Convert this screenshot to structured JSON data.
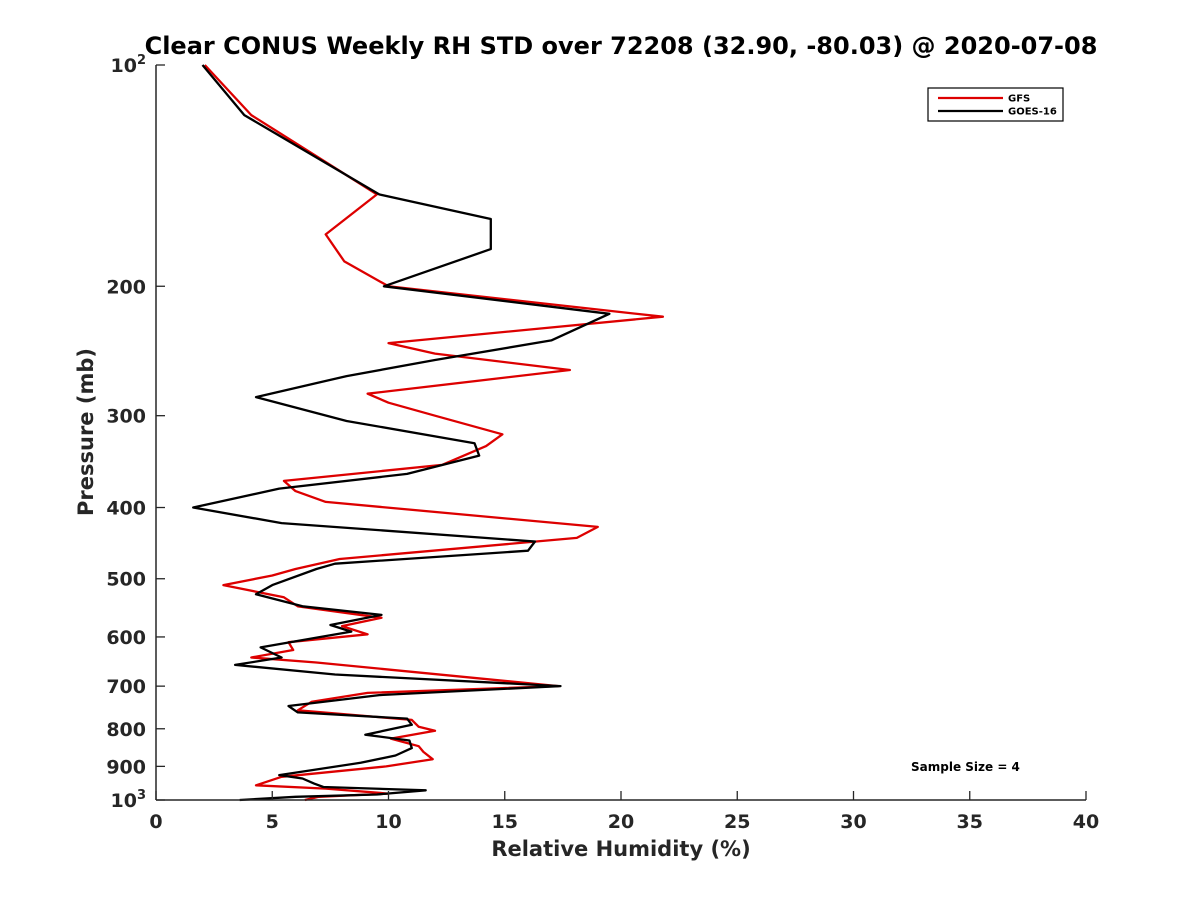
{
  "chart_data": {
    "type": "line",
    "title": "Clear CONUS Weekly RH STD over 72208 (32.90, -80.03) @ 2020-07-08",
    "xlabel": "Relative Humidity (%)",
    "ylabel": "Pressure (mb)",
    "xlim": [
      0,
      40
    ],
    "ylim": [
      100,
      1000
    ],
    "y_scale": "log",
    "y_reversed": true,
    "x_ticks": [
      0,
      5,
      10,
      15,
      20,
      25,
      30,
      35,
      40
    ],
    "x_tick_labels": [
      "0",
      "5",
      "10",
      "15",
      "20",
      "25",
      "30",
      "35",
      "40"
    ],
    "y_ticks": [
      {
        "value": 100,
        "base": "10",
        "exp": "2"
      },
      {
        "value": 200,
        "label": "200"
      },
      {
        "value": 300,
        "label": "300"
      },
      {
        "value": 400,
        "label": "400"
      },
      {
        "value": 500,
        "label": "500"
      },
      {
        "value": 600,
        "label": "600"
      },
      {
        "value": 700,
        "label": "700"
      },
      {
        "value": 800,
        "label": "800"
      },
      {
        "value": 900,
        "label": "900"
      },
      {
        "value": 1000,
        "base": "10",
        "exp": "3"
      }
    ],
    "legend": {
      "position": "top-right",
      "entries": [
        "GFS",
        "GOES-16"
      ]
    },
    "annotation": "Sample Size = 4",
    "series": [
      {
        "name": "GFS",
        "color": "#dd0000",
        "points": [
          [
            2.1,
            100
          ],
          [
            4.1,
            117
          ],
          [
            9.5,
            150
          ],
          [
            7.3,
            170
          ],
          [
            8.1,
            185
          ],
          [
            10.0,
            200
          ],
          [
            21.8,
            220
          ],
          [
            10.0,
            239
          ],
          [
            12.0,
            247
          ],
          [
            17.8,
            260
          ],
          [
            9.1,
            280
          ],
          [
            10.0,
            288
          ],
          [
            12.0,
            300
          ],
          [
            14.9,
            318
          ],
          [
            14.2,
            330
          ],
          [
            12.3,
            350
          ],
          [
            5.5,
            368
          ],
          [
            6.0,
            380
          ],
          [
            7.3,
            393
          ],
          [
            19.0,
            425
          ],
          [
            18.1,
            440
          ],
          [
            7.9,
            470
          ],
          [
            6.0,
            485
          ],
          [
            5.0,
            495
          ],
          [
            2.9,
            510
          ],
          [
            5.5,
            530
          ],
          [
            6.1,
            545
          ],
          [
            9.7,
            565
          ],
          [
            8.0,
            580
          ],
          [
            9.1,
            595
          ],
          [
            5.7,
            610
          ],
          [
            5.9,
            625
          ],
          [
            4.1,
            640
          ],
          [
            6.9,
            650
          ],
          [
            17.3,
            700
          ],
          [
            9.1,
            715
          ],
          [
            6.7,
            735
          ],
          [
            6.1,
            755
          ],
          [
            11.0,
            778
          ],
          [
            11.3,
            795
          ],
          [
            12.0,
            805
          ],
          [
            10.1,
            825
          ],
          [
            11.3,
            845
          ],
          [
            11.5,
            860
          ],
          [
            11.9,
            880
          ],
          [
            9.9,
            900
          ],
          [
            5.4,
            930
          ],
          [
            4.3,
            955
          ],
          [
            7.3,
            965
          ],
          [
            10.0,
            980
          ],
          [
            7.0,
            990
          ],
          [
            6.4,
            1000
          ]
        ]
      },
      {
        "name": "GOES-16",
        "color": "#000000",
        "points": [
          [
            2.0,
            100
          ],
          [
            3.8,
            117
          ],
          [
            9.6,
            150
          ],
          [
            14.4,
            162
          ],
          [
            14.4,
            178
          ],
          [
            9.8,
            200
          ],
          [
            19.5,
            218
          ],
          [
            17.0,
            237
          ],
          [
            12.0,
            252
          ],
          [
            8.2,
            265
          ],
          [
            4.3,
            283
          ],
          [
            8.2,
            305
          ],
          [
            13.7,
            327
          ],
          [
            13.9,
            340
          ],
          [
            10.8,
            360
          ],
          [
            5.3,
            377
          ],
          [
            1.6,
            400
          ],
          [
            5.4,
            420
          ],
          [
            16.3,
            445
          ],
          [
            16.0,
            458
          ],
          [
            7.7,
            477
          ],
          [
            6.9,
            485
          ],
          [
            5.0,
            510
          ],
          [
            4.3,
            525
          ],
          [
            6.3,
            545
          ],
          [
            9.7,
            560
          ],
          [
            7.5,
            578
          ],
          [
            8.4,
            590
          ],
          [
            4.5,
            620
          ],
          [
            5.4,
            640
          ],
          [
            3.4,
            655
          ],
          [
            7.7,
            675
          ],
          [
            17.4,
            700
          ],
          [
            9.6,
            720
          ],
          [
            5.7,
            745
          ],
          [
            6.1,
            760
          ],
          [
            10.8,
            775
          ],
          [
            11.0,
            790
          ],
          [
            9.0,
            815
          ],
          [
            10.9,
            830
          ],
          [
            11.0,
            850
          ],
          [
            10.3,
            870
          ],
          [
            8.8,
            890
          ],
          [
            5.3,
            925
          ],
          [
            6.3,
            935
          ],
          [
            6.8,
            950
          ],
          [
            7.2,
            960
          ],
          [
            11.6,
            970
          ],
          [
            9.5,
            983
          ],
          [
            6.0,
            990
          ],
          [
            3.6,
            1000
          ]
        ]
      }
    ]
  }
}
